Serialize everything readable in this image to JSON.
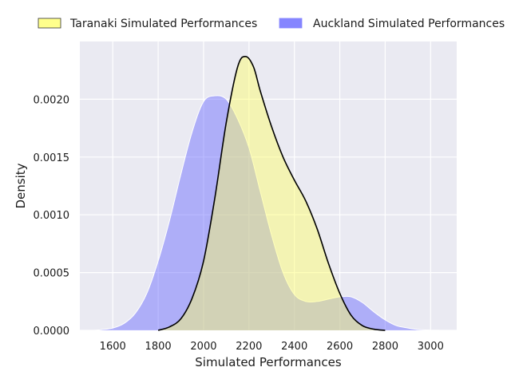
{
  "chart_data": {
    "type": "area",
    "title": "",
    "xlabel": "Simulated Performances",
    "ylabel": "Density",
    "xlim": [
      1455,
      3115
    ],
    "ylim": [
      0,
      0.0025
    ],
    "xticks": [
      1600,
      1800,
      2000,
      2200,
      2400,
      2600,
      2800,
      3000
    ],
    "xtick_labels": [
      "1600",
      "1800",
      "2000",
      "2200",
      "2400",
      "2600",
      "2800",
      "3000"
    ],
    "yticks": [
      0,
      0.0005,
      0.001,
      0.0015,
      0.002
    ],
    "ytick_labels": [
      "0.0000",
      "0.0005",
      "0.0010",
      "0.0015",
      "0.0020"
    ],
    "grid": true,
    "legend": "top, outside plot, two columns",
    "series": [
      {
        "name": "Taranaki Simulated Performances",
        "fill_color": "#ffff66",
        "line_color": "#000000",
        "x": [
          1800,
          1850,
          1900,
          1950,
          2000,
          2050,
          2100,
          2150,
          2185,
          2220,
          2250,
          2300,
          2350,
          2400,
          2450,
          2500,
          2550,
          2600,
          2650,
          2700,
          2750,
          2800
        ],
        "y": [
          0,
          3e-05,
          0.0001,
          0.00028,
          0.0006,
          0.00115,
          0.0018,
          0.00228,
          0.00237,
          0.00228,
          0.00207,
          0.00176,
          0.0015,
          0.0013,
          0.00112,
          0.00088,
          0.00058,
          0.00032,
          0.00013,
          4e-05,
          1e-05,
          0
        ]
      },
      {
        "name": "Auckland Simulated Performances",
        "fill_color": "#6666ff",
        "line_color": "#ffffff",
        "x": [
          1520,
          1550,
          1600,
          1650,
          1700,
          1750,
          1800,
          1850,
          1900,
          1950,
          2000,
          2050,
          2100,
          2150,
          2200,
          2250,
          2300,
          2350,
          2400,
          2450,
          2500,
          2550,
          2600,
          2650,
          2700,
          2750,
          2800,
          2850,
          2900,
          2950,
          3000,
          3040
        ],
        "y": [
          1e-06,
          6e-06,
          2e-05,
          6e-05,
          0.00015,
          0.00032,
          0.0006,
          0.00095,
          0.00135,
          0.00172,
          0.00198,
          0.00203,
          0.002,
          0.00183,
          0.00158,
          0.0012,
          0.00082,
          0.0005,
          0.00031,
          0.00025,
          0.00025,
          0.00027,
          0.00029,
          0.00029,
          0.00024,
          0.00016,
          9e-05,
          4e-05,
          2e-05,
          6e-06,
          2e-06,
          5e-07
        ]
      }
    ]
  }
}
